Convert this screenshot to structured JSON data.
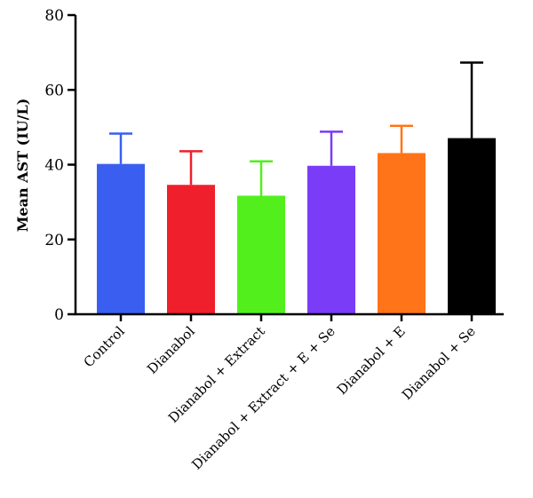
{
  "chart_data": {
    "type": "bar",
    "title": "",
    "xlabel": "",
    "ylabel": "Mean AST (IU/L)",
    "ylim": [
      0,
      80
    ],
    "yticks": [
      0,
      20,
      40,
      60,
      80
    ],
    "grid": false,
    "legend": "none",
    "categories": [
      "Control",
      "Dianabol",
      "Dianabol + Extract",
      "Dianabol + Extract + E + Se",
      "Dianabol + E",
      "Dianabol + Se"
    ],
    "values": [
      40.2,
      34.6,
      31.7,
      39.7,
      43.1,
      47.1
    ],
    "error_upper": [
      48.3,
      43.6,
      40.9,
      48.8,
      50.4,
      67.3
    ],
    "colors": [
      "#3a5ff0",
      "#f01f2c",
      "#52ef1d",
      "#7a3cf6",
      "#ff7418",
      "#000000"
    ]
  }
}
